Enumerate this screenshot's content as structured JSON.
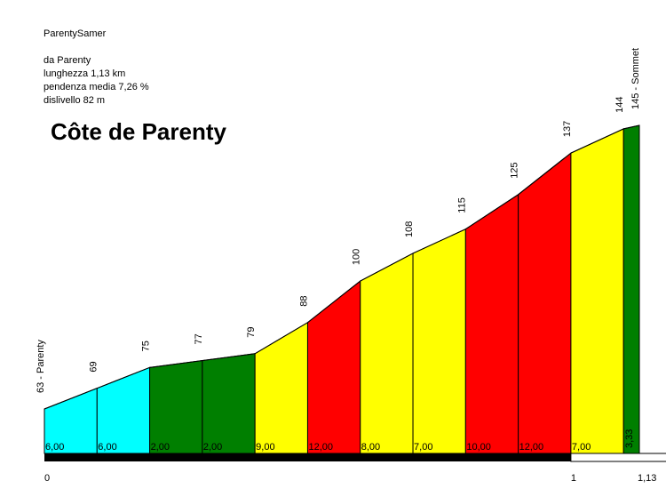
{
  "info": {
    "name": "ParentySamer",
    "from": "da Parenty",
    "length": "lunghezza 1,13 km",
    "gradient": "pendenza media 7,26 %",
    "climb": "dislivello 82 m"
  },
  "title": "Côte de Parenty",
  "chart_data": {
    "type": "area",
    "title": "Côte de Parenty",
    "xlim": [
      0,
      1.13
    ],
    "ylim": [
      55,
      150
    ],
    "x_ticks": [
      "0",
      "1",
      "1,13"
    ],
    "points": [
      {
        "x": 0.0,
        "y": 63,
        "label": "63 - Parenty"
      },
      {
        "x": 0.1,
        "y": 69,
        "label": "69"
      },
      {
        "x": 0.2,
        "y": 75,
        "label": "75"
      },
      {
        "x": 0.3,
        "y": 77,
        "label": "77"
      },
      {
        "x": 0.4,
        "y": 79,
        "label": "79"
      },
      {
        "x": 0.5,
        "y": 88,
        "label": "88"
      },
      {
        "x": 0.6,
        "y": 100,
        "label": "100"
      },
      {
        "x": 0.7,
        "y": 108,
        "label": "108"
      },
      {
        "x": 0.8,
        "y": 115,
        "label": "115"
      },
      {
        "x": 0.9,
        "y": 125,
        "label": "125"
      },
      {
        "x": 1.0,
        "y": 137,
        "label": "137"
      },
      {
        "x": 1.1,
        "y": 144,
        "label": "144"
      },
      {
        "x": 1.13,
        "y": 145,
        "label": "145 - Sommet"
      }
    ],
    "segments": [
      {
        "gradient": "6,00",
        "color": "#00ffff"
      },
      {
        "gradient": "6,00",
        "color": "#00ffff"
      },
      {
        "gradient": "2,00",
        "color": "#007f00"
      },
      {
        "gradient": "2,00",
        "color": "#007f00"
      },
      {
        "gradient": "9,00",
        "color": "#ffff00"
      },
      {
        "gradient": "12,00",
        "color": "#ff0000"
      },
      {
        "gradient": "8,00",
        "color": "#ffff00"
      },
      {
        "gradient": "7,00",
        "color": "#ffff00"
      },
      {
        "gradient": "10,00",
        "color": "#ff0000"
      },
      {
        "gradient": "12,00",
        "color": "#ff0000"
      },
      {
        "gradient": "7,00",
        "color": "#ffff00"
      },
      {
        "gradient": "3,33",
        "color": "#007f00"
      }
    ]
  }
}
